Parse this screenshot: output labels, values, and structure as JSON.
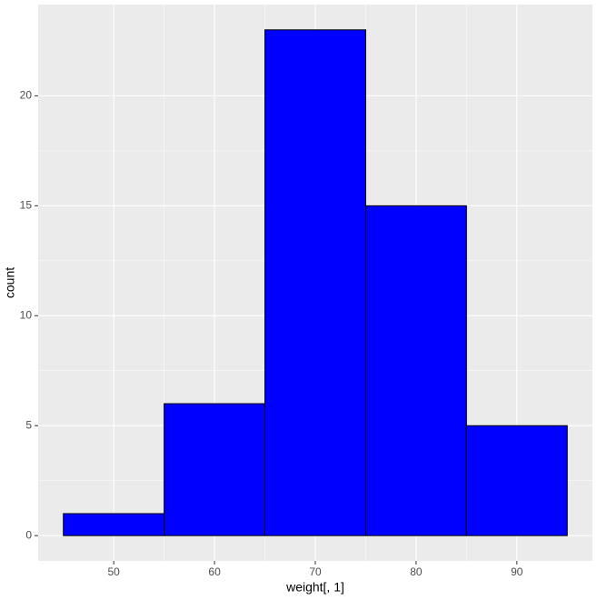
{
  "chart_data": {
    "type": "histogram",
    "x_label": "weight[, 1]",
    "y_label": "count",
    "bins": [
      45,
      55,
      65,
      75,
      85,
      95
    ],
    "values": [
      1,
      6,
      23,
      15,
      5
    ],
    "color": "#0000ff",
    "edge_color": "#000000",
    "xlim": [
      42.5,
      97.5
    ],
    "ylim": [
      -1.15,
      24.15
    ],
    "xticks": [
      50,
      60,
      70,
      80,
      90
    ],
    "yticks": [
      0,
      5,
      10,
      15,
      20
    ],
    "grid": true
  }
}
